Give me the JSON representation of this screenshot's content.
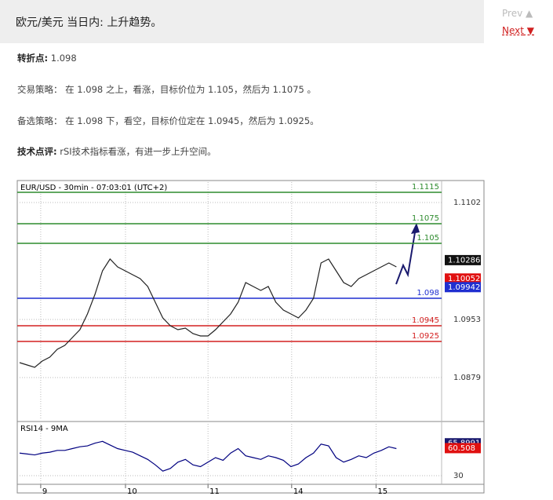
{
  "header": {
    "title": "欧元/美元 当日内: 上升趋势。",
    "prev": "Prev",
    "next": "Next"
  },
  "paragraphs": [
    {
      "label": "转折点:",
      "text": "1.098"
    },
    {
      "label": "交易策略：",
      "text": "在 1.098 之上，看涨，目标价位为 1.105，然后为 1.1075 。"
    },
    {
      "label": "备选策略：",
      "text": "在 1.098 下，看空，目标价位定在 1.0945，然后为 1.0925。"
    },
    {
      "label": "技术点评:",
      "text": "rSI技术指标看涨，有进一步上升空间。"
    }
  ],
  "chart_data": [
    {
      "type": "line",
      "title": "EUR/USD - 30min - 07:03:01 (UTC+2)",
      "x": [
        0,
        1,
        2,
        3,
        4,
        5,
        6,
        7,
        8,
        9,
        10,
        11,
        12,
        13,
        14,
        15,
        16,
        17,
        18,
        19,
        20,
        21,
        22,
        23,
        24,
        25,
        26,
        27,
        28,
        29,
        30,
        31,
        32,
        33,
        34,
        35,
        36,
        37,
        38,
        39,
        40,
        41,
        42,
        43,
        44,
        45,
        46,
        47,
        48,
        49,
        50
      ],
      "xlim": [
        0,
        56
      ],
      "ylim": [
        1.0825,
        1.1128
      ],
      "yticks": [
        1.1102,
        1.0953,
        1.0879
      ],
      "series": [
        {
          "color": "#222222",
          "values": [
            1.0898,
            1.0895,
            1.0892,
            1.09,
            1.0905,
            1.0915,
            1.092,
            1.093,
            1.094,
            1.096,
            1.0985,
            1.1015,
            1.103,
            1.102,
            1.1015,
            1.101,
            1.1005,
            1.0995,
            1.0975,
            1.0955,
            1.0945,
            1.094,
            1.0942,
            1.0935,
            1.0932,
            1.0932,
            1.094,
            1.095,
            1.096,
            1.0975,
            1.1,
            1.0995,
            1.099,
            1.0995,
            1.0975,
            1.0965,
            1.096,
            1.0955,
            1.0965,
            1.098,
            1.1025,
            1.103,
            1.1015,
            1.1,
            1.0995,
            1.1005,
            1.101,
            1.1015,
            1.102,
            1.1025,
            1.102
          ]
        }
      ],
      "levels": [
        {
          "value": 1.1115,
          "color": "#2e8b2e"
        },
        {
          "value": 1.1075,
          "color": "#2e8b2e"
        },
        {
          "value": 1.105,
          "color": "#2e8b2e"
        },
        {
          "value": 1.098,
          "color": "#1f2fd0"
        },
        {
          "value": 1.0945,
          "color": "#d42020"
        },
        {
          "value": 1.0925,
          "color": "#d42020"
        }
      ],
      "price_tags": [
        {
          "value": 1.10286,
          "color": "#111111"
        },
        {
          "value": 1.10052,
          "color": "#e01010"
        },
        {
          "value": 1.09942,
          "color": "#1f2fd0"
        }
      ]
    },
    {
      "type": "line",
      "title": "RSI14 - 9MA",
      "x": [
        0,
        1,
        2,
        3,
        4,
        5,
        6,
        7,
        8,
        9,
        10,
        11,
        12,
        13,
        14,
        15,
        16,
        17,
        18,
        19,
        20,
        21,
        22,
        23,
        24,
        25,
        26,
        27,
        28,
        29,
        30,
        31,
        32,
        33,
        34,
        35,
        36,
        37,
        38,
        39,
        40,
        41,
        42,
        43,
        44,
        45,
        46,
        47,
        48,
        49,
        50
      ],
      "xlim": [
        0,
        56
      ],
      "xticks": [
        {
          "value": 2.8,
          "label": "9"
        },
        {
          "value": 14.05,
          "label": "10"
        },
        {
          "value": 25,
          "label": "11"
        },
        {
          "value": 36.1,
          "label": "14"
        },
        {
          "value": 47.3,
          "label": "15"
        }
      ],
      "ylim": [
        20,
        85
      ],
      "yticks": [
        30
      ],
      "series": [
        {
          "color": "#000080",
          "values": [
            55,
            54,
            53,
            55,
            56,
            58,
            58,
            60,
            62,
            63,
            66,
            68,
            64,
            60,
            58,
            56,
            52,
            48,
            42,
            35,
            38,
            45,
            48,
            42,
            40,
            45,
            50,
            47,
            55,
            60,
            52,
            50,
            48,
            52,
            50,
            47,
            40,
            43,
            50,
            55,
            65,
            63,
            50,
            45,
            48,
            52,
            50,
            55,
            58,
            62,
            60
          ]
        }
      ],
      "price_tags": [
        {
          "value": 65.8991,
          "color": "#1a1a6e"
        },
        {
          "value": 60.508,
          "color": "#e01010"
        }
      ]
    }
  ]
}
